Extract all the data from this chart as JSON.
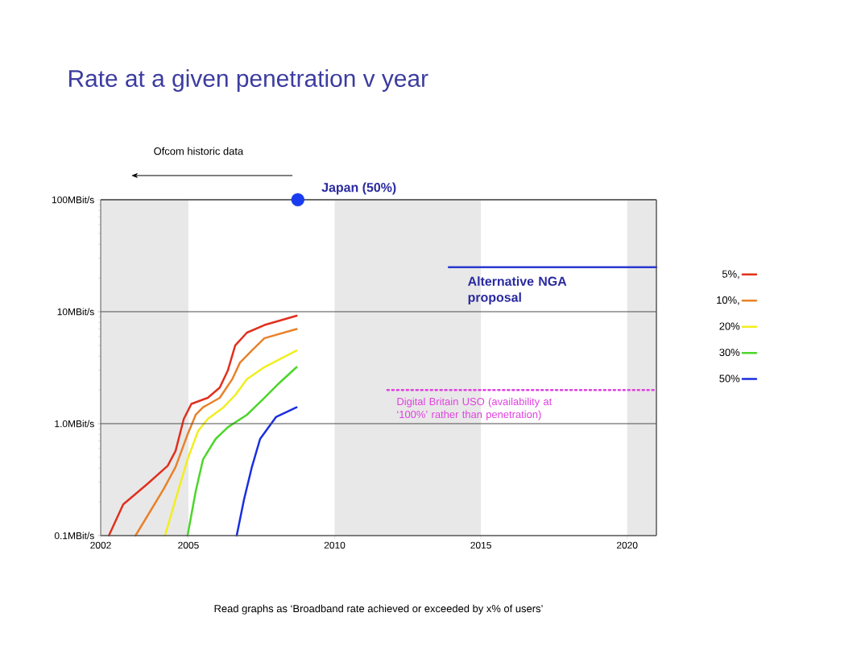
{
  "chart_data": {
    "type": "line",
    "title": "Rate at a given penetration v year",
    "xlim": [
      2002,
      2021
    ],
    "xticks": [
      2002,
      2005,
      2010,
      2015,
      2020
    ],
    "ylim": [
      0.1,
      100
    ],
    "yticks": [
      {
        "value": 0.1,
        "label": "0.1MBit/s"
      },
      {
        "value": 1,
        "label": "1.0MBit/s"
      },
      {
        "value": 10,
        "label": "10MBit/s"
      },
      {
        "value": 100,
        "label": "100MBit/s"
      }
    ],
    "log": "y",
    "grid": "y",
    "legend": "right",
    "bands": [
      {
        "axis": "x",
        "from": 2002,
        "to": 2005,
        "color": "#e8e8e8"
      },
      {
        "axis": "x",
        "from": 2010,
        "to": 2015,
        "color": "#e8e8e8"
      },
      {
        "axis": "x",
        "from": 2020,
        "to": 2021,
        "color": "#e8e8e8"
      }
    ],
    "series": [
      {
        "name": "5%,",
        "color": "#e0301e",
        "x": [
          2002.28,
          2002.77,
          2003.6,
          2004.29,
          2004.56,
          2004.84,
          2005.1,
          2005.66,
          2006.07,
          2006.35,
          2006.6,
          2007.0,
          2007.6,
          2008.7
        ],
        "values": [
          0.1,
          0.19,
          0.29,
          0.42,
          0.57,
          1.1,
          1.5,
          1.7,
          2.1,
          3.0,
          5,
          6.5,
          7.6,
          9.2
        ]
      },
      {
        "name": "10%,",
        "color": "#e8822a",
        "x": [
          2003.19,
          2003.6,
          2004.15,
          2004.56,
          2004.97,
          2005.25,
          2005.5,
          2006.07,
          2006.5,
          2006.76,
          2007.17,
          2007.6,
          2008.7
        ],
        "values": [
          0.1,
          0.15,
          0.26,
          0.41,
          0.8,
          1.2,
          1.4,
          1.7,
          2.5,
          3.5,
          4.5,
          5.8,
          7
        ]
      },
      {
        "name": "20%",
        "color": "#f2ee1e",
        "x": [
          2004.2,
          2004.56,
          2004.97,
          2005.33,
          2005.66,
          2006.2,
          2006.6,
          2007.0,
          2007.6,
          2008.7
        ],
        "values": [
          0.1,
          0.21,
          0.48,
          0.86,
          1.1,
          1.4,
          1.8,
          2.5,
          3.2,
          4.5
        ]
      },
      {
        "name": "30%",
        "color": "#4cd62a",
        "x": [
          2004.97,
          2005.25,
          2005.5,
          2005.93,
          2006.35,
          2007.0,
          2007.6,
          2008.1,
          2008.7
        ],
        "values": [
          0.1,
          0.25,
          0.48,
          0.73,
          0.93,
          1.2,
          1.7,
          2.3,
          3.2
        ]
      },
      {
        "name": "50%",
        "color": "#1a2ee0",
        "x": [
          2006.65,
          2006.9,
          2007.17,
          2007.45,
          2008.0,
          2008.7
        ],
        "values": [
          0.1,
          0.21,
          0.41,
          0.73,
          1.15,
          1.4
        ]
      },
      {
        "type": "scatter",
        "marker": "circle",
        "color": "#1a3cf0",
        "x": [
          2008.74
        ],
        "values": [
          100
        ]
      },
      {
        "color": "#2a3ad0",
        "x": [
          2013.9,
          2021
        ],
        "values": [
          25,
          25
        ]
      },
      {
        "color": "#e040e0",
        "line_style": "dotted",
        "x": [
          2011.8,
          2021
        ],
        "values": [
          2,
          2
        ]
      }
    ],
    "annotations": [
      "Ofcom historic data",
      {
        "text": "Japan (50%)",
        "x": 2008.74,
        "y": 100
      },
      {
        "text": "Alternative NGA proposal",
        "x": 2013.9,
        "y": 25
      },
      {
        "text": "Digital Britain USO (availability at ‘100%’ rather than penetration)",
        "x": 2011.8,
        "y": 2
      },
      "Read graphs as ‘Broadband rate achieved or exceeded by x% of users’"
    ]
  }
}
